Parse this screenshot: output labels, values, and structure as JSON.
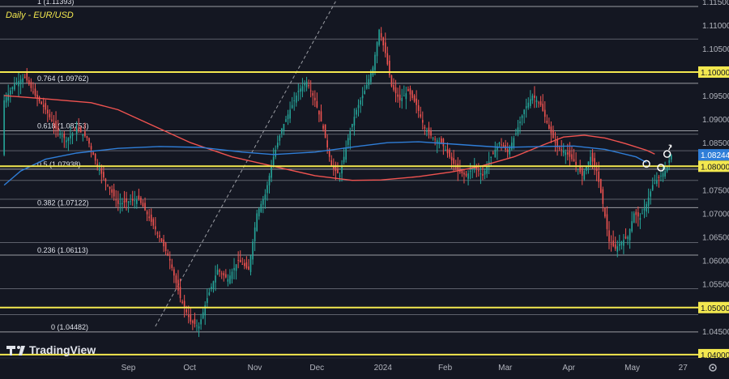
{
  "chart_data": {
    "type": "candlestick",
    "title": "Daily - EUR/USD",
    "watermark": "TradingView",
    "ylim": [
      1.0393,
      1.1153
    ],
    "y_ticks": [
      "1.11500",
      "1.11000",
      "1.10500",
      "1.10000",
      "1.09500",
      "1.09000",
      "1.08500",
      "1.08000",
      "1.07500",
      "1.07000",
      "1.06500",
      "1.06000",
      "1.05500",
      "1.05000",
      "1.04500",
      "1.04000"
    ],
    "x_ticks": [
      {
        "label": "Sep",
        "day": 0
      },
      {
        "label": "Oct",
        "day": 30
      },
      {
        "label": "Nov",
        "day": 61
      },
      {
        "label": "Dec",
        "day": 91
      },
      {
        "label": "2024",
        "day": 122
      },
      {
        "label": "Feb",
        "day": 153
      },
      {
        "label": "Mar",
        "day": 182
      },
      {
        "label": "Apr",
        "day": 213
      },
      {
        "label": "May",
        "day": 243
      },
      {
        "label": "27",
        "day": 269
      }
    ],
    "last_price": {
      "label": "1.08244",
      "value": 1.08244
    },
    "fib_levels": [
      {
        "label": "1 (1.11393)",
        "value": 1.11393
      },
      {
        "label": "0.764 (1.09762)",
        "value": 1.09762
      },
      {
        "label": "0.618 (1.08753)",
        "value": 1.08753
      },
      {
        "label": "0.5 (1.07938)",
        "value": 1.07938
      },
      {
        "label": "0.382 (1.07122)",
        "value": 1.07122
      },
      {
        "label": "0.236 (1.06113)",
        "value": 1.06113
      },
      {
        "label": "0 (1.04482)",
        "value": 1.04482
      }
    ],
    "key_levels": [
      {
        "label": "1.10000",
        "value": 1.1
      },
      {
        "label": "1.08000",
        "value": 1.08
      },
      {
        "label": "1.05000",
        "value": 1.05
      },
      {
        "label": "1.04000",
        "value": 1.04
      }
    ],
    "grey_lines": [
      1.107,
      1.0868,
      1.0833,
      1.077,
      1.073,
      1.0638,
      1.054,
      1.0485
    ],
    "series": [
      {
        "name": "MA red",
        "color": "#f05350",
        "points": [
          [
            -60,
            1.095
          ],
          [
            -40,
            1.0943
          ],
          [
            -18,
            1.0935
          ],
          [
            -5,
            1.092
          ],
          [
            10,
            1.089
          ],
          [
            30,
            1.085
          ],
          [
            50,
            1.082
          ],
          [
            70,
            1.08
          ],
          [
            90,
            1.078
          ],
          [
            108,
            1.077
          ],
          [
            122,
            1.0771
          ],
          [
            140,
            1.0778
          ],
          [
            156,
            1.0788
          ],
          [
            170,
            1.08
          ],
          [
            186,
            1.082
          ],
          [
            200,
            1.0845
          ],
          [
            210,
            1.0862
          ],
          [
            220,
            1.0866
          ],
          [
            230,
            1.086
          ],
          [
            240,
            1.0848
          ],
          [
            250,
            1.0834
          ],
          [
            254,
            1.0826
          ]
        ]
      },
      {
        "name": "MA blue",
        "color": "#2f7ed8",
        "points": [
          [
            -60,
            1.076
          ],
          [
            -52,
            1.079
          ],
          [
            -40,
            1.0815
          ],
          [
            -25,
            1.0828
          ],
          [
            -5,
            1.0838
          ],
          [
            15,
            1.0842
          ],
          [
            35,
            1.084
          ],
          [
            55,
            1.083
          ],
          [
            70,
            1.0825
          ],
          [
            90,
            1.083
          ],
          [
            110,
            1.0842
          ],
          [
            125,
            1.085
          ],
          [
            140,
            1.0852
          ],
          [
            160,
            1.0846
          ],
          [
            180,
            1.084
          ],
          [
            200,
            1.0842
          ],
          [
            215,
            1.0843
          ],
          [
            230,
            1.0836
          ],
          [
            245,
            1.082
          ],
          [
            250,
            1.0808
          ]
        ]
      }
    ],
    "trend_line": [
      [
        13,
        1.046
      ],
      [
        100,
        1.115
      ]
    ],
    "markers": [
      {
        "day": 250,
        "value": 1.0805
      },
      {
        "day": 257,
        "value": 1.0797
      },
      {
        "day": 260,
        "value": 1.0826
      }
    ],
    "swing_path": [
      [
        -60,
        1.094
      ],
      [
        -55,
        1.0975
      ],
      [
        -50,
        1.099
      ],
      [
        -45,
        1.095
      ],
      [
        -40,
        1.092
      ],
      [
        -35,
        1.088
      ],
      [
        -30,
        1.0855
      ],
      [
        -25,
        1.088
      ],
      [
        -20,
        1.086
      ],
      [
        -15,
        1.08
      ],
      [
        -10,
        1.076
      ],
      [
        -5,
        1.072
      ],
      [
        0,
        1.0725
      ],
      [
        5,
        1.073
      ],
      [
        10,
        1.069
      ],
      [
        15,
        1.065
      ],
      [
        20,
        1.06
      ],
      [
        25,
        1.052
      ],
      [
        30,
        1.047
      ],
      [
        34,
        1.046
      ],
      [
        38,
        1.052
      ],
      [
        43,
        1.058
      ],
      [
        48,
        1.056
      ],
      [
        53,
        1.06
      ],
      [
        58,
        1.058
      ],
      [
        62,
        1.07
      ],
      [
        66,
        1.074
      ],
      [
        70,
        1.082
      ],
      [
        74,
        1.088
      ],
      [
        78,
        1.092
      ],
      [
        82,
        1.096
      ],
      [
        86,
        1.098
      ],
      [
        90,
        1.094
      ],
      [
        94,
        1.088
      ],
      [
        98,
        1.08
      ],
      [
        102,
        1.078
      ],
      [
        106,
        1.086
      ],
      [
        110,
        1.092
      ],
      [
        114,
        1.096
      ],
      [
        118,
        1.101
      ],
      [
        121,
        1.109
      ],
      [
        124,
        1.104
      ],
      [
        127,
        1.097
      ],
      [
        131,
        1.094
      ],
      [
        135,
        1.096
      ],
      [
        139,
        1.093
      ],
      [
        143,
        1.088
      ],
      [
        147,
        1.086
      ],
      [
        151,
        1.085
      ],
      [
        155,
        1.082
      ],
      [
        159,
        1.079
      ],
      [
        163,
        1.078
      ],
      [
        167,
        1.08
      ],
      [
        171,
        1.078
      ],
      [
        175,
        1.082
      ],
      [
        179,
        1.085
      ],
      [
        183,
        1.083
      ],
      [
        187,
        1.087
      ],
      [
        191,
        1.092
      ],
      [
        195,
        1.095
      ],
      [
        199,
        1.093
      ],
      [
        203,
        1.088
      ],
      [
        207,
        1.084
      ],
      [
        211,
        1.083
      ],
      [
        215,
        1.081
      ],
      [
        219,
        1.078
      ],
      [
        223,
        1.082
      ],
      [
        226,
        1.079
      ],
      [
        229,
        1.072
      ],
      [
        232,
        1.064
      ],
      [
        235,
        1.0625
      ],
      [
        238,
        1.064
      ],
      [
        241,
        1.065
      ],
      [
        244,
        1.07
      ],
      [
        247,
        1.069
      ],
      [
        250,
        1.072
      ],
      [
        253,
        1.076
      ],
      [
        256,
        1.0775
      ],
      [
        259,
        1.079
      ],
      [
        262,
        1.0824
      ]
    ]
  },
  "colors": {
    "background": "#141722",
    "bull": "#26a69a",
    "bear": "#f05350",
    "key_level": "#f3e84f",
    "fib_line": "#9a9ca3",
    "grid_line": "#5d606b",
    "price_tag": "#2f7ed8",
    "tick_text": "#b2b5be"
  },
  "footer": {
    "gear_icon": "gear-icon"
  }
}
